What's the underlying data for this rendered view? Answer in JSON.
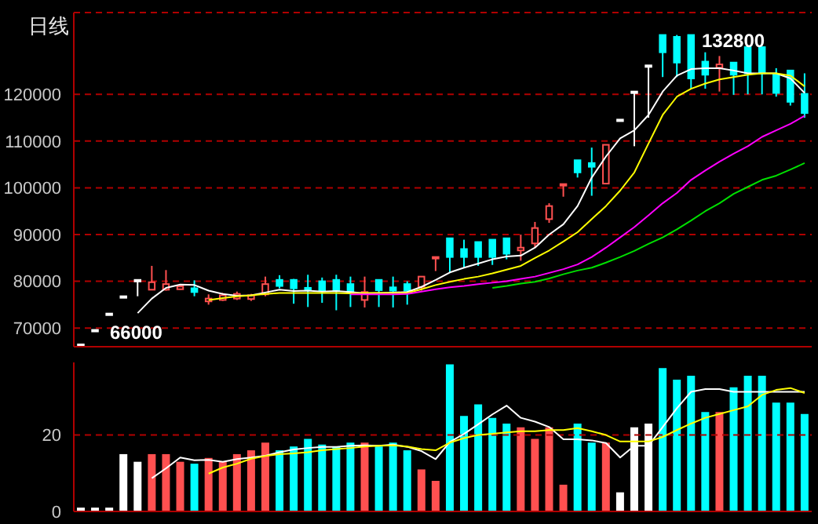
{
  "chart_data": [
    {
      "type": "candlestick",
      "title": "日线",
      "categories": [
        null,
        null,
        null,
        null,
        null,
        null,
        null,
        null,
        null,
        null,
        null,
        null,
        null,
        null,
        null,
        null,
        null,
        null,
        null,
        null,
        null,
        null,
        null,
        null,
        null,
        null,
        null,
        null,
        null,
        null,
        null,
        null,
        null,
        null,
        null,
        null,
        null,
        null,
        null,
        null,
        null,
        null,
        null,
        null,
        null,
        null,
        null,
        null,
        null,
        null,
        null,
        null
      ],
      "ohlc": [
        [
          66500,
          66500,
          66000,
          66500
        ],
        [
          69600,
          69600,
          69600,
          69600
        ],
        [
          73100,
          73100,
          73100,
          73100
        ],
        [
          76800,
          76800,
          76800,
          76800
        ],
        [
          80300,
          80300,
          76800,
          80300
        ],
        [
          78200,
          83300,
          78200,
          79800
        ],
        [
          78200,
          82400,
          78000,
          79400
        ],
        [
          78300,
          79000,
          78200,
          78900
        ],
        [
          78500,
          80200,
          76800,
          77700
        ],
        [
          75700,
          77200,
          75000,
          76300
        ],
        [
          76000,
          77500,
          75800,
          77000
        ],
        [
          76300,
          77800,
          76000,
          77300
        ],
        [
          76200,
          77300,
          75800,
          77000
        ],
        [
          77200,
          81000,
          76800,
          79400
        ],
        [
          80300,
          81300,
          78500,
          79000
        ],
        [
          80300,
          80500,
          75200,
          78500
        ],
        [
          78600,
          81400,
          74500,
          78300
        ],
        [
          80000,
          80800,
          75400,
          78000
        ],
        [
          80300,
          81400,
          73800,
          78100
        ],
        [
          79400,
          81000,
          74500,
          77700
        ],
        [
          76000,
          81000,
          74400,
          77700
        ],
        [
          80300,
          80300,
          74500,
          78100
        ],
        [
          78700,
          81000,
          74400,
          78000
        ],
        [
          79400,
          80000,
          75000,
          78000
        ],
        [
          78800,
          81000,
          78000,
          81000
        ],
        [
          85000,
          85200,
          82200,
          85200
        ],
        [
          89200,
          89200,
          81800,
          85200
        ],
        [
          86900,
          88900,
          82900,
          85200
        ],
        [
          88400,
          88400,
          83300,
          85200
        ],
        [
          88900,
          88900,
          83500,
          85200
        ],
        [
          89200,
          89200,
          84700,
          85900
        ],
        [
          86600,
          90000,
          84400,
          87200
        ],
        [
          88100,
          92700,
          87200,
          91400
        ],
        [
          93300,
          96700,
          92500,
          96100
        ],
        [
          100500,
          100800,
          98100,
          100800
        ],
        [
          105900,
          105900,
          102200,
          103300
        ],
        [
          105300,
          108600,
          98300,
          104500
        ],
        [
          100900,
          109200,
          100900,
          109200
        ],
        [
          114600,
          114600,
          114600,
          114600
        ],
        [
          120600,
          120600,
          108900,
          120600
        ],
        [
          126200,
          126200,
          115000,
          126200
        ],
        [
          132700,
          132700,
          123700,
          129000
        ],
        [
          132300,
          132700,
          123700,
          126800
        ],
        [
          132700,
          132800,
          121200,
          123400
        ],
        [
          127000,
          129000,
          121200,
          124200
        ],
        [
          125700,
          128200,
          120600,
          126400
        ],
        [
          126800,
          126800,
          119900,
          124200
        ],
        [
          130100,
          130100,
          120000,
          124500
        ],
        [
          130100,
          130100,
          120000,
          124500
        ],
        [
          124200,
          125600,
          119500,
          120300
        ],
        [
          125100,
          125100,
          117600,
          118400
        ],
        [
          120100,
          124500,
          115000,
          116000
        ]
      ],
      "colors": [
        "#ffffff",
        "#ffffff",
        "#ffffff",
        "#ffffff",
        "#ffffff",
        "#ff5050",
        "#ff5050",
        "#ff5050",
        "#00ffff",
        "#ff5050",
        "#ff5050",
        "#ff5050",
        "#ff5050",
        "#ff5050",
        "#00ffff",
        "#00ffff",
        "#00ffff",
        "#00ffff",
        "#00ffff",
        "#00ffff",
        "#ff5050",
        "#00ffff",
        "#00ffff",
        "#00ffff",
        "#ff5050",
        "#ff5050",
        "#00ffff",
        "#00ffff",
        "#00ffff",
        "#00ffff",
        "#00ffff",
        "#ff5050",
        "#ff5050",
        "#ff5050",
        "#ff5050",
        "#00ffff",
        "#00ffff",
        "#ff5050",
        "#ffffff",
        "#ffffff",
        "#ffffff",
        "#00ffff",
        "#00ffff",
        "#00ffff",
        "#00ffff",
        "#ff5050",
        "#00ffff",
        "#00ffff",
        "#00ffff",
        "#00ffff",
        "#00ffff",
        "#00ffff"
      ],
      "series": [
        {
          "type": "line",
          "color": "#ffffff",
          "values": [
            null,
            null,
            null,
            null,
            73200,
            76300,
            78600,
            79300,
            79200,
            78000,
            77300,
            76900,
            77000,
            77600,
            78200,
            77900,
            78000,
            77800,
            77900,
            77700,
            77400,
            77500,
            77600,
            77700,
            78800,
            80300,
            81900,
            82900,
            83800,
            84700,
            85300,
            85500,
            87200,
            90000,
            92200,
            96100,
            102200,
            106700,
            110600,
            112300,
            115600,
            120600,
            124000,
            125400,
            125600,
            125600,
            125100,
            124500,
            124500,
            124500,
            123400,
            120300
          ]
        },
        {
          "type": "line",
          "color": "#ffff00",
          "values": [
            null,
            null,
            null,
            null,
            null,
            null,
            null,
            null,
            null,
            76000,
            76400,
            76800,
            77000,
            77300,
            77500,
            77500,
            77500,
            77500,
            77500,
            77400,
            77500,
            77500,
            77500,
            77500,
            78300,
            79200,
            79900,
            80500,
            81000,
            81700,
            82500,
            83300,
            85000,
            86600,
            88500,
            90500,
            93300,
            96100,
            99400,
            103300,
            109500,
            115600,
            119500,
            121200,
            122300,
            123200,
            123700,
            124200,
            124500,
            124500,
            124000,
            121700
          ]
        },
        {
          "type": "line",
          "color": "#ff00ff",
          "values": [
            null,
            null,
            null,
            null,
            null,
            null,
            null,
            null,
            null,
            null,
            null,
            null,
            null,
            null,
            null,
            null,
            null,
            null,
            null,
            77200,
            77200,
            77200,
            77200,
            77300,
            77800,
            78300,
            78700,
            79000,
            79400,
            79700,
            80000,
            80500,
            81000,
            81800,
            82600,
            83600,
            85200,
            87200,
            89400,
            91600,
            94100,
            96700,
            98900,
            101700,
            103700,
            105600,
            107300,
            108900,
            110900,
            112300,
            113700,
            115400
          ]
        },
        {
          "type": "line",
          "color": "#00e000",
          "values": [
            null,
            null,
            null,
            null,
            null,
            null,
            null,
            null,
            null,
            null,
            null,
            null,
            null,
            null,
            null,
            null,
            null,
            null,
            null,
            null,
            null,
            null,
            null,
            null,
            null,
            null,
            null,
            null,
            null,
            78600,
            79000,
            79500,
            79900,
            80600,
            81500,
            82300,
            82900,
            84000,
            85200,
            86500,
            88000,
            89400,
            91100,
            93000,
            95000,
            96700,
            98700,
            100200,
            101700,
            102600,
            103900,
            105300
          ]
        }
      ],
      "ylim": [
        66000,
        137500
      ],
      "yticks": [
        70000,
        80000,
        90000,
        100000,
        110000,
        120000
      ],
      "grid": "y",
      "tick_labels": "y",
      "annotations": [
        "132800",
        "66000"
      ]
    },
    {
      "type": "bar",
      "categories": [
        null,
        null,
        null,
        null,
        null,
        null,
        null,
        null,
        null,
        null,
        null,
        null,
        null,
        null,
        null,
        null,
        null,
        null,
        null,
        null,
        null,
        null,
        null,
        null,
        null,
        null,
        null,
        null,
        null,
        null,
        null,
        null,
        null,
        null,
        null,
        null,
        null,
        null,
        null,
        null,
        null,
        null,
        null,
        null,
        null,
        null,
        null,
        null,
        null,
        null,
        null,
        null
      ],
      "series": [
        {
          "type": "bar",
          "colors": [
            "#ffffff",
            "#ffffff",
            "#ffffff",
            "#ffffff",
            "#ffffff",
            "#ff5050",
            "#ff5050",
            "#ff5050",
            "#00ffff",
            "#ff5050",
            "#ff5050",
            "#ff5050",
            "#ff5050",
            "#ff5050",
            "#00ffff",
            "#00ffff",
            "#00ffff",
            "#00ffff",
            "#00ffff",
            "#00ffff",
            "#ff5050",
            "#00ffff",
            "#00ffff",
            "#00ffff",
            "#ff5050",
            "#ff5050",
            "#00ffff",
            "#00ffff",
            "#00ffff",
            "#00ffff",
            "#00ffff",
            "#ff5050",
            "#ff5050",
            "#ff5050",
            "#ff5050",
            "#00ffff",
            "#00ffff",
            "#ff5050",
            "#ffffff",
            "#ffffff",
            "#ffffff",
            "#00ffff",
            "#00ffff",
            "#00ffff",
            "#00ffff",
            "#ff5050",
            "#00ffff",
            "#00ffff",
            "#00ffff",
            "#00ffff",
            "#00ffff",
            "#00ffff"
          ],
          "values": [
            1,
            1,
            1,
            15,
            13,
            15,
            15,
            13,
            12.5,
            14,
            13,
            15,
            16,
            18,
            16,
            17,
            19,
            17.5,
            17,
            18,
            18,
            17,
            18,
            16,
            11,
            8,
            38.5,
            25,
            28,
            24.5,
            23,
            22,
            19,
            22,
            7,
            23,
            18,
            18,
            5,
            22,
            23,
            37.5,
            34.5,
            35.5,
            26,
            26,
            32.5,
            35.5,
            35.5,
            28.5,
            28.5,
            25.5
          ]
        },
        {
          "type": "line",
          "color": "#ffffff",
          "values": [
            null,
            null,
            null,
            null,
            null,
            8.7,
            11.3,
            14.1,
            13.4,
            13.5,
            13,
            13.7,
            14.1,
            14.6,
            15.5,
            16.2,
            16.6,
            16.9,
            16.9,
            17.2,
            17.3,
            17.2,
            17.5,
            16.9,
            15.8,
            13.7,
            18.2,
            20.3,
            22.8,
            25.4,
            27.7,
            24.5,
            23.5,
            22.1,
            18.9,
            18.9,
            18.6,
            17.9,
            14.1,
            17.2,
            17.2,
            22.1,
            27,
            31.3,
            32,
            32,
            31.3,
            31.3,
            31.3,
            31.3,
            31.3,
            31.3
          ]
        },
        {
          "type": "line",
          "color": "#ffff00",
          "values": [
            null,
            null,
            null,
            null,
            null,
            null,
            null,
            null,
            null,
            9.9,
            11.5,
            12.5,
            13.8,
            14.5,
            15,
            15.2,
            15.5,
            16,
            16.3,
            16.6,
            17,
            17.2,
            17.3,
            17,
            16.3,
            16,
            18,
            19.2,
            20,
            20.3,
            20.7,
            21,
            21,
            21.3,
            21.3,
            21.8,
            21,
            20,
            18.3,
            18.3,
            18.3,
            19.5,
            21.3,
            23,
            24.5,
            25.5,
            26.5,
            27.5,
            30.5,
            31.8,
            32.3,
            31
          ]
        }
      ],
      "ylim": [
        0,
        39
      ],
      "yticks": [
        0,
        20
      ],
      "ref_lines": [
        {
          "axis": "y",
          "value": 20,
          "color": "#b00000",
          "line_style": "dashed"
        }
      ],
      "tick_labels": "y"
    }
  ]
}
